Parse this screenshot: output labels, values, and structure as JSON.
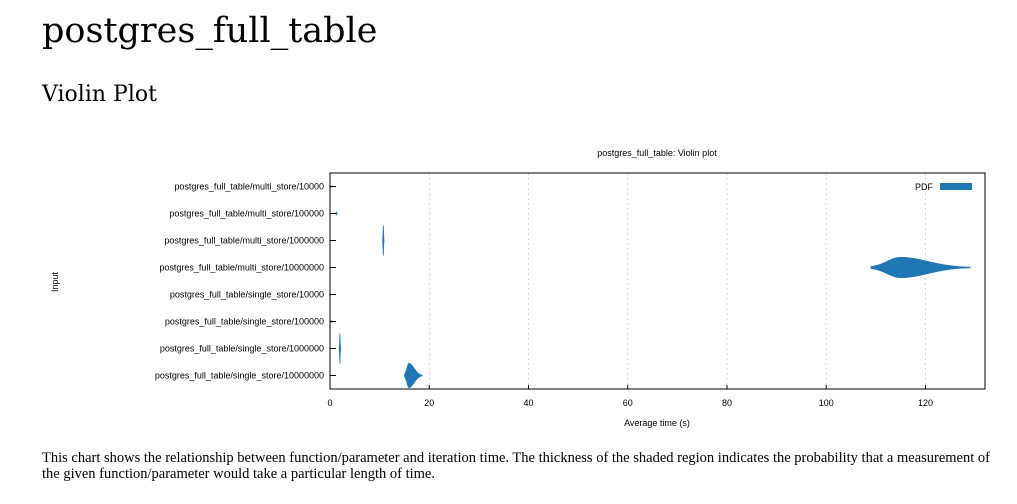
{
  "page": {
    "title": "postgres_full_table",
    "section_title": "Violin Plot",
    "description": "This chart shows the relationship between function/parameter and iteration time. The thickness of the shaded region indicates the probability that a measurement of the given function/parameter would take a particular length of time."
  },
  "chart_data": {
    "type": "violin",
    "title": "postgres_full_table: Violin plot",
    "xlabel": "Average time (s)",
    "ylabel": "Input",
    "xlim": [
      0,
      132
    ],
    "xticks": [
      0,
      20,
      40,
      60,
      80,
      100,
      120
    ],
    "grid": "vertical dashed",
    "legend": {
      "label": "PDF",
      "position": "top-right"
    },
    "colors": {
      "violin": "#1f77b4"
    },
    "categories": [
      "postgres_full_table/multi_store/10000",
      "postgres_full_table/multi_store/100000",
      "postgres_full_table/multi_store/1000000",
      "postgres_full_table/multi_store/10000000",
      "postgres_full_table/single_store/10000",
      "postgres_full_table/single_store/100000",
      "postgres_full_table/single_store/1000000",
      "postgres_full_table/single_store/10000000"
    ],
    "series": [
      {
        "min": 0.15,
        "max": 0.25,
        "peak": 0.2,
        "width": 0.03
      },
      {
        "min": 1.2,
        "max": 1.4,
        "peak": 1.3,
        "width": 0.06
      },
      {
        "min": 10.7,
        "max": 10.8,
        "peak": 10.75,
        "width": 0.55
      },
      {
        "min": 109,
        "max": 129,
        "peak": 115,
        "width": 0.38
      },
      {
        "min": 0.05,
        "max": 0.09,
        "peak": 0.07,
        "width": 0.02
      },
      {
        "min": 0.28,
        "max": 0.34,
        "peak": 0.31,
        "width": 0.03
      },
      {
        "min": 1.9,
        "max": 2.1,
        "peak": 2.0,
        "width": 0.55
      },
      {
        "min": 15,
        "max": 18.6,
        "peak": 15.9,
        "width": 0.45
      }
    ]
  }
}
